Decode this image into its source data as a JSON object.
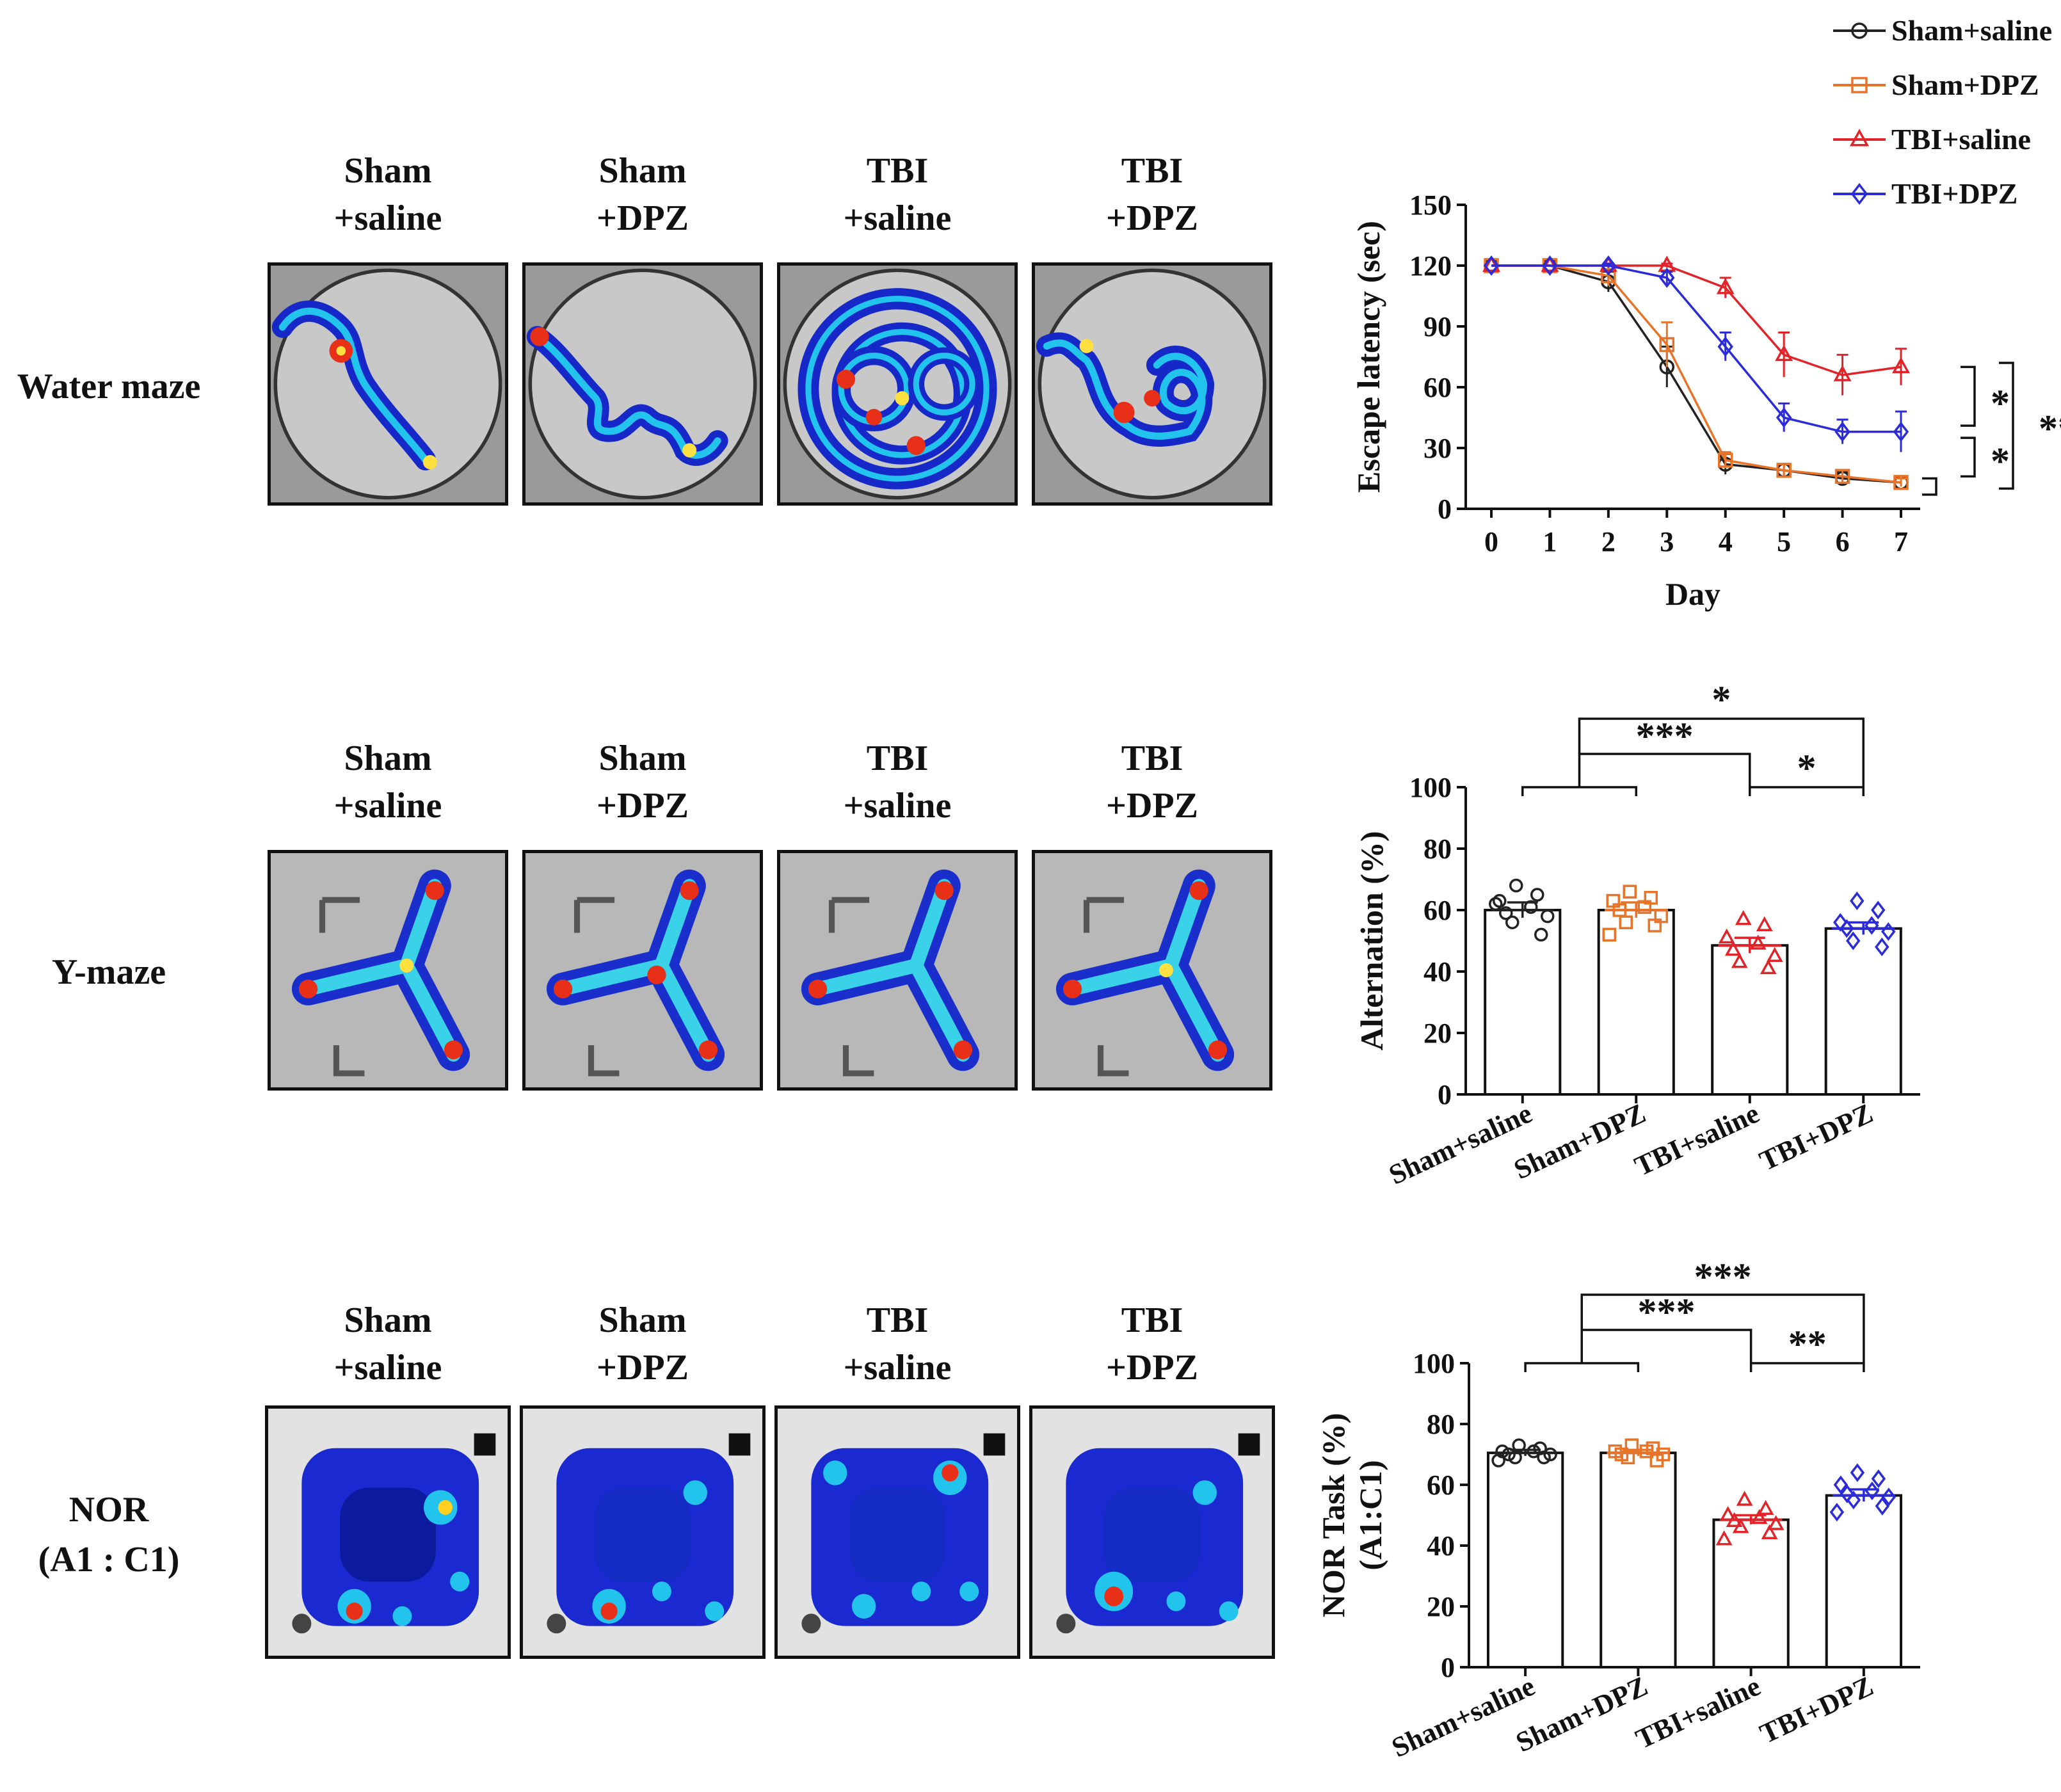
{
  "rows": [
    {
      "label": "Water maze"
    },
    {
      "label": "Y-maze"
    },
    {
      "label_line1": "NOR",
      "label_line2": "(A1 : C1)"
    }
  ],
  "groups": [
    {
      "line1": "Sham",
      "line2": "+saline"
    },
    {
      "line1": "Sham",
      "line2": "+DPZ"
    },
    {
      "line1": "TBI",
      "line2": "+saline"
    },
    {
      "line1": "TBI",
      "line2": "+DPZ"
    }
  ],
  "legend": [
    {
      "name": "Sham+saline",
      "color": "#222222",
      "marker": "circle"
    },
    {
      "name": "Sham+DPZ",
      "color": "#e8742a",
      "marker": "square"
    },
    {
      "name": "TBI+saline",
      "color": "#e0242a",
      "marker": "triangle"
    },
    {
      "name": "TBI+DPZ",
      "color": "#2b2bd9",
      "marker": "diamond"
    }
  ],
  "chart_data": [
    {
      "type": "line",
      "xlabel": "Day",
      "ylabel": "Escape latency (sec)",
      "x": [
        0,
        1,
        2,
        3,
        4,
        5,
        6,
        7
      ],
      "ylim": [
        0,
        150
      ],
      "yticks": [
        0,
        30,
        60,
        90,
        120,
        150
      ],
      "series": [
        {
          "name": "Sham+saline",
          "color": "#222222",
          "values": [
            120,
            120,
            112,
            70,
            22,
            19,
            15,
            13
          ],
          "errors": [
            0,
            0,
            5,
            10,
            5,
            3,
            3,
            2
          ]
        },
        {
          "name": "Sham+DPZ",
          "color": "#e8742a",
          "values": [
            120,
            120,
            115,
            81,
            24,
            19,
            16,
            13
          ],
          "errors": [
            0,
            0,
            5,
            11,
            4,
            3,
            3,
            2
          ]
        },
        {
          "name": "TBI+saline",
          "color": "#e0242a",
          "values": [
            120,
            120,
            120,
            120,
            109,
            76,
            66,
            70
          ],
          "errors": [
            0,
            0,
            1,
            1,
            5,
            11,
            10,
            9
          ]
        },
        {
          "name": "TBI+DPZ",
          "color": "#2b2bd9",
          "values": [
            120,
            120,
            120,
            114,
            80,
            45,
            38,
            38
          ],
          "errors": [
            0,
            0,
            1,
            3,
            7,
            7,
            6,
            10
          ]
        }
      ],
      "significance": [
        "*",
        "*",
        "***"
      ]
    },
    {
      "type": "bar",
      "ylabel": "Alternation (%)",
      "categories": [
        "Sham+saline",
        "Sham+DPZ",
        "TBI+saline",
        "TBI+DPZ"
      ],
      "ylim": [
        0,
        100
      ],
      "yticks": [
        0,
        20,
        40,
        60,
        80,
        100
      ],
      "values": [
        60,
        60,
        48.5,
        54
      ],
      "errors": [
        2.5,
        2.5,
        2.5,
        2
      ],
      "points": [
        [
          68,
          65,
          63,
          61,
          59,
          58,
          56,
          52,
          62
        ],
        [
          66,
          64,
          63,
          61,
          60,
          58,
          56,
          55,
          52
        ],
        [
          57,
          55,
          51,
          49,
          47,
          45,
          43,
          41
        ],
        [
          63,
          60,
          56,
          55,
          54,
          53,
          50,
          48
        ]
      ],
      "significance": [
        "***",
        "*",
        "*"
      ]
    },
    {
      "type": "bar",
      "ylabel_line1": "NOR Task (%)",
      "ylabel_line2": "(A1:C1)",
      "categories": [
        "Sham+saline",
        "Sham+DPZ",
        "TBI+saline",
        "TBI+DPZ"
      ],
      "ylim": [
        0,
        100
      ],
      "yticks": [
        0,
        20,
        40,
        60,
        80,
        100
      ],
      "values": [
        70.5,
        70.5,
        48.5,
        56.5
      ],
      "errors": [
        1,
        1,
        1.5,
        2
      ],
      "points": [
        [
          73,
          72,
          71,
          71,
          70,
          70,
          69,
          69,
          68
        ],
        [
          73,
          72,
          71,
          71,
          70,
          70,
          69,
          68
        ],
        [
          55,
          52,
          50,
          49,
          48,
          47,
          46,
          44,
          42
        ],
        [
          64,
          62,
          60,
          58,
          57,
          56,
          55,
          53,
          51
        ]
      ],
      "significance": [
        "***",
        "***",
        "**"
      ]
    }
  ]
}
